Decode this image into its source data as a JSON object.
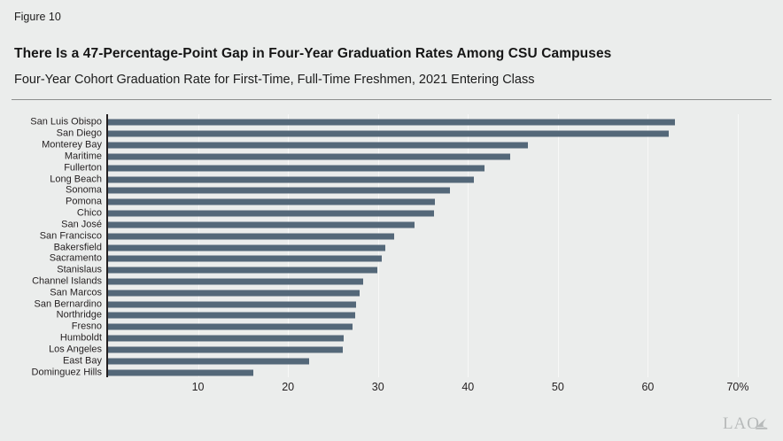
{
  "header": {
    "figure_label": "Figure 10",
    "title": "There Is a 47-Percentage-Point Gap in Four-Year Graduation Rates Among CSU Campuses",
    "subtitle": "Four-Year Cohort Graduation Rate for First-Time, Full-Time Freshmen, 2021 Entering Class"
  },
  "chart_data": {
    "type": "bar",
    "orientation": "horizontal",
    "categories": [
      "San Luis Obispo",
      "San Diego",
      "Monterey Bay",
      "Maritime",
      "Fullerton",
      "Long Beach",
      "Sonoma",
      "Pomona",
      "Chico",
      "San José",
      "San Francisco",
      "Bakersfield",
      "Sacramento",
      "Stanislaus",
      "Channel Islands",
      "San Marcos",
      "San Bernardino",
      "Northridge",
      "Fresno",
      "Humboldt",
      "Los Angeles",
      "East Bay",
      "Dominguez Hills"
    ],
    "values": [
      63.0,
      62.3,
      46.7,
      44.7,
      41.8,
      40.7,
      38.0,
      36.3,
      36.2,
      34.1,
      31.8,
      30.8,
      30.4,
      29.9,
      28.4,
      28.0,
      27.6,
      27.5,
      27.2,
      26.2,
      26.1,
      22.3,
      16.1
    ],
    "unit": "percent",
    "xlim": [
      0,
      70
    ],
    "xticks": [
      10,
      20,
      30,
      40,
      50,
      60,
      70
    ],
    "xtick_labels": [
      "10",
      "20",
      "30",
      "40",
      "50",
      "60",
      "70%"
    ],
    "grid": true,
    "legend": "none",
    "bar_color": "#546879"
  },
  "colors": {
    "background": "#ebedec",
    "bar": "#546879",
    "axis": "#231f20",
    "gridline": "#f7f8f7",
    "text": "#231f20",
    "logo": "#b7baba"
  },
  "footer": {
    "logo_text": "LAO"
  }
}
